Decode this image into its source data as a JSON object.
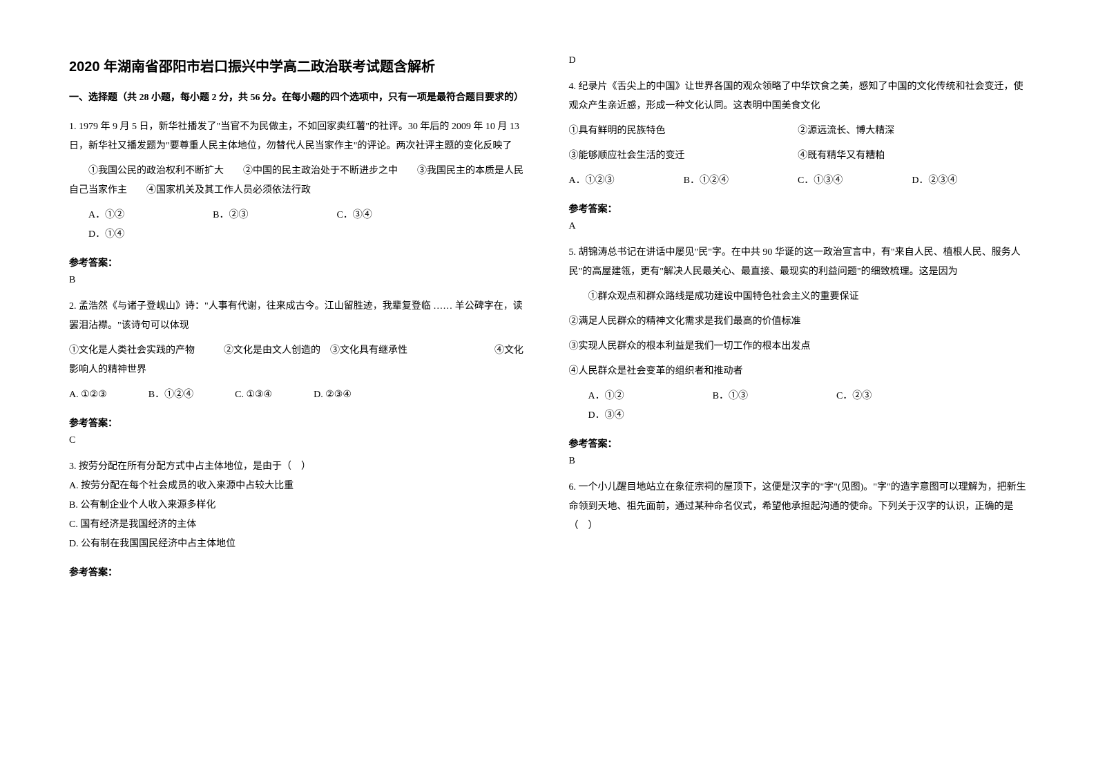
{
  "title": "2020 年湖南省邵阳市岩口振兴中学高二政治联考试题含解析",
  "section_header": "一、选择题（共 28 小题，每小题 2 分，共 56 分。在每小题的四个选项中，只有一项是最符合题目要求的）",
  "answer_label": "参考答案：",
  "q1": {
    "text": "1. 1979 年 9 月 5 日，新华社播发了\"当官不为民做主，不如回家卖红薯\"的社评。30 年后的 2009 年 10 月 13 日，新华社又播发题为\"要尊重人民主体地位，勿替代人民当家作主\"的评论。两次社评主题的变化反映了",
    "subs": "①我国公民的政治权利不断扩大　　②中国的民主政治处于不断进步之中　　③我国民主的本质是人民自己当家作主　　④国家机关及其工作人员必须依法行政",
    "optA": "A．①②",
    "optB": "B．②③",
    "optC": "C．③④",
    "optD": "D．①④",
    "answer": "B"
  },
  "q2": {
    "text": "2. 孟浩然《与诸子登岘山》诗：\"人事有代谢，往来成古今。江山留胜迹，我辈复登临 …… 羊公碑字在，读罢泪沾襟。\"该诗句可以体现",
    "subs": "①文化是人类社会实践的产物　　　②文化是由文人创造的　③文化具有继承性　　　　　　　　　④文化影响人的精神世界",
    "optA": "A. ①②③",
    "optB": "B．①②④",
    "optC": "C. ①③④",
    "optD": "D. ②③④",
    "answer": "C"
  },
  "q3": {
    "text": "3. 按劳分配在所有分配方式中占主体地位，是由于（　）",
    "optA": "A. 按劳分配在每个社会成员的收入来源中占较大比重",
    "optB": "B. 公有制企业个人收入来源多样化",
    "optC": "C. 国有经济是我国经济的主体",
    "optD": "D. 公有制在我国国民经济中占主体地位",
    "answer": "D"
  },
  "q4": {
    "text": "4. 纪录片《舌尖上的中国》让世界各国的观众领略了中华饮食之美，感知了中国的文化传统和社会变迁，使观众产生亲近感，形成一种文化认同。这表明中国美食文化",
    "sub1": "①具有鲜明的民族特色",
    "sub2": "②源远流长、博大精深",
    "sub3": "③能够顺应社会生活的变迁",
    "sub4": "④既有精华又有糟粕",
    "optA": "A．①②③",
    "optB": "B．①②④",
    "optC": "C．①③④",
    "optD": "D．②③④",
    "answer": "A"
  },
  "q5": {
    "text": "5. 胡锦涛总书记在讲话中屡见\"民\"字。在中共 90 华诞的这一政治宣言中，有\"来自人民、植根人民、服务人民\"的高屋建瓴，更有\"解决人民最关心、最直接、最现实的利益问题\"的细致梳理。这是因为",
    "sub1": "①群众观点和群众路线是成功建设中国特色社会主义的重要保证",
    "sub2": "②满足人民群众的精神文化需求是我们最高的价值标准",
    "sub3": "③实现人民群众的根本利益是我们一切工作的根本出发点",
    "sub4": "④人民群众是社会变革的组织者和推动者",
    "optA": "A．①②",
    "optB": "B．①③",
    "optC": "C．②③",
    "optD": "D．③④",
    "answer": "B"
  },
  "q6": {
    "text": "6. 一个小儿醒目地站立在象征宗祠的屋顶下，这便是汉字的\"字\"(见图)。\"字\"的造字意图可以理解为，把新生命领到天地、祖先面前，通过某种命名仪式，希望他承担起沟通的使命。下列关于汉字的认识，正确的是　　　　　　（　）"
  }
}
